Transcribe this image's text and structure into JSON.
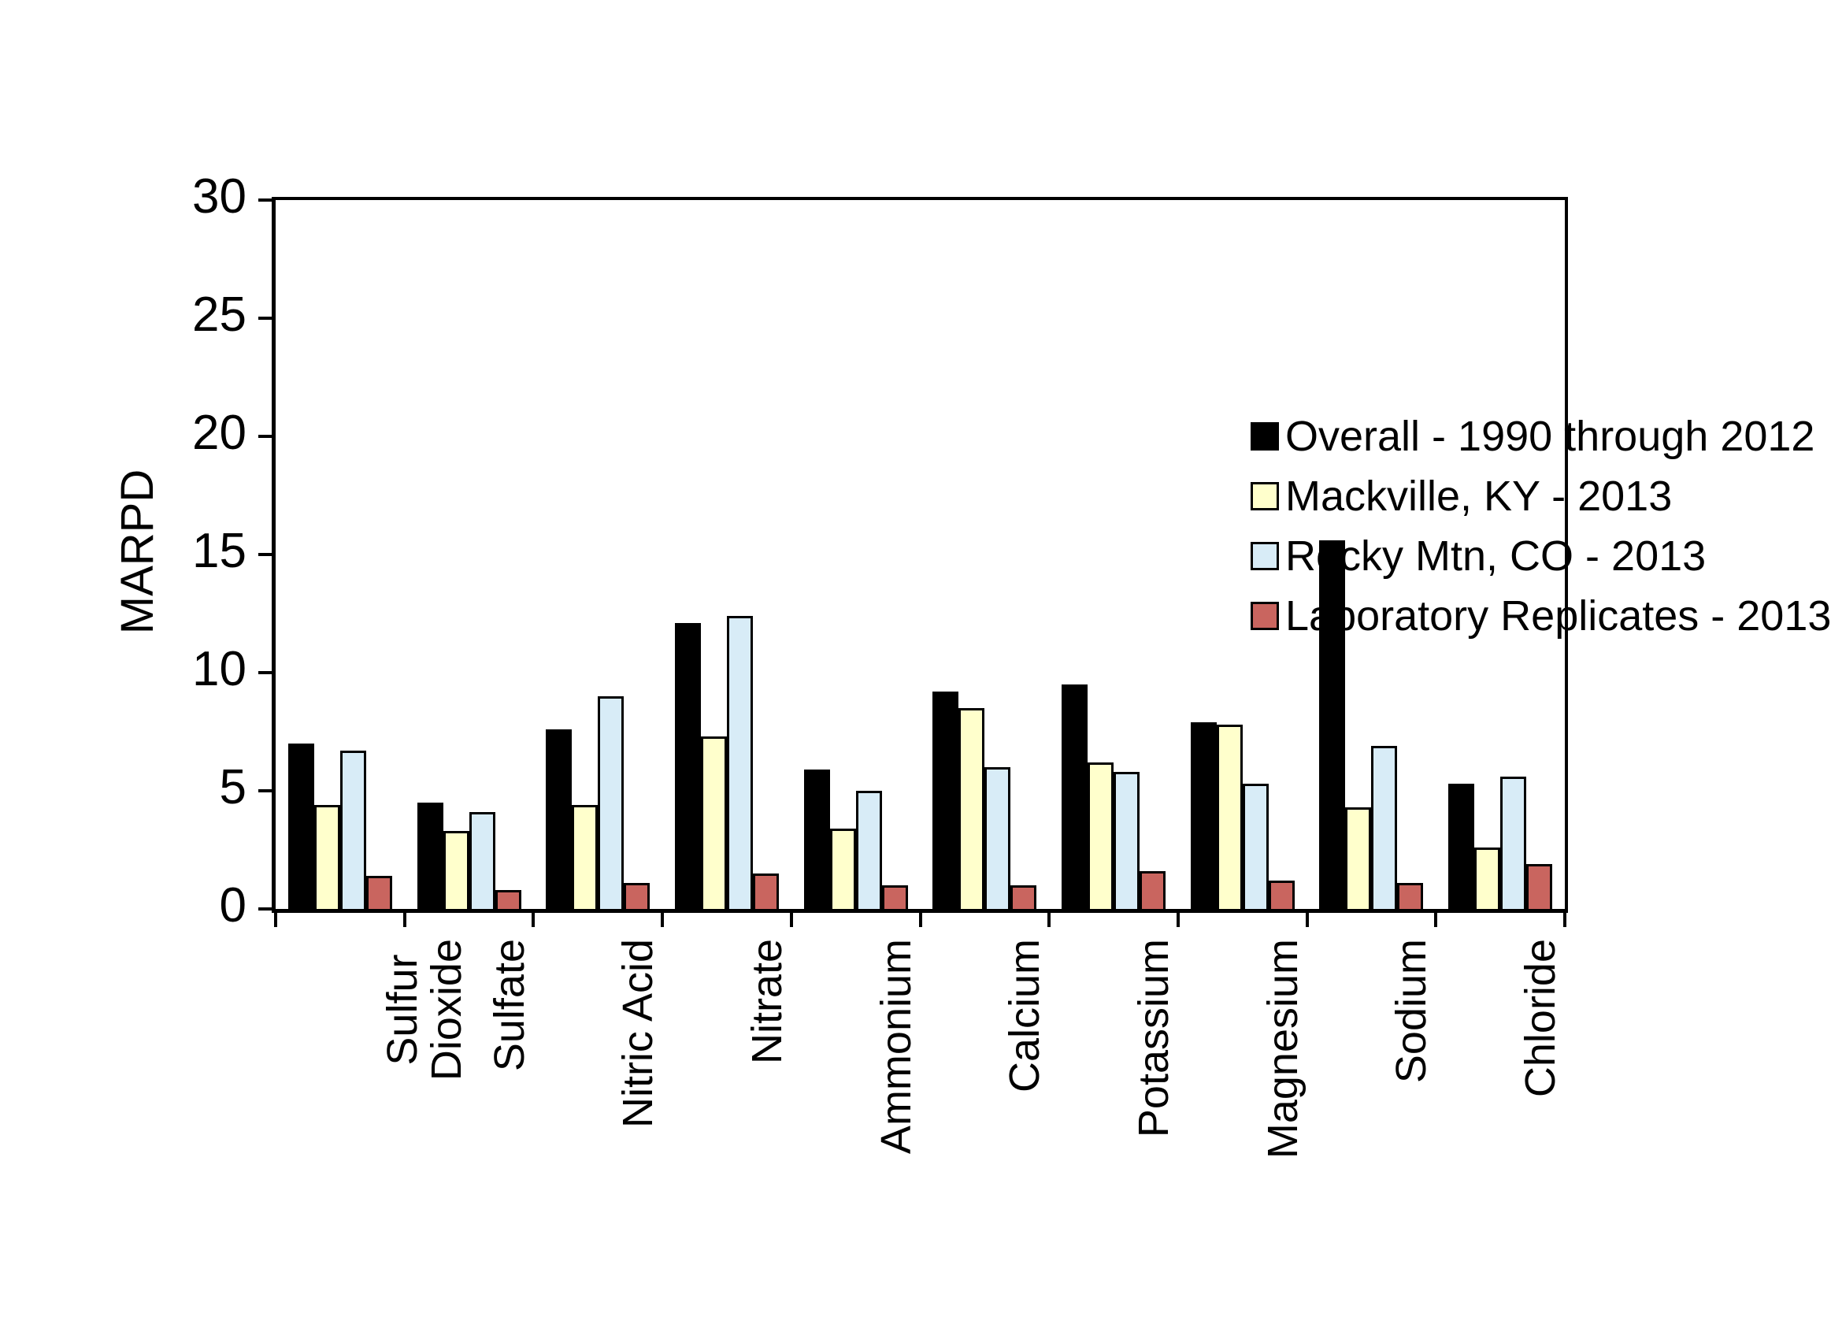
{
  "chart_data": {
    "type": "bar",
    "title": "",
    "xlabel": "",
    "ylabel": "MARPD",
    "ylim": [
      0,
      30
    ],
    "yticks": [
      0,
      5,
      10,
      15,
      20,
      25,
      30
    ],
    "grid": false,
    "legend_position": "top-right-inside",
    "categories": [
      "Sulfur Dioxide",
      "Sulfate",
      "Nitric Acid",
      "Nitrate",
      "Ammonium",
      "Calcium",
      "Potassium",
      "Magnesium",
      "Sodium",
      "Chloride"
    ],
    "category_display_lines": [
      [
        "Sulfur",
        "Dioxide"
      ],
      [
        "Sulfate"
      ],
      [
        "Nitric Acid"
      ],
      [
        "Nitrate"
      ],
      [
        "Ammonium"
      ],
      [
        "Calcium"
      ],
      [
        "Potassium"
      ],
      [
        "Magnesium"
      ],
      [
        "Sodium"
      ],
      [
        "Chloride"
      ]
    ],
    "series": [
      {
        "name": "Overall - 1990 through 2012",
        "color": "#000000",
        "values": [
          7.0,
          4.5,
          7.6,
          12.1,
          5.9,
          9.2,
          9.5,
          7.9,
          15.6,
          5.3
        ]
      },
      {
        "name": "Mackville, KY - 2013",
        "color": "#FFFFCC",
        "values": [
          4.4,
          3.3,
          4.4,
          7.3,
          3.4,
          8.5,
          6.2,
          7.8,
          4.3,
          2.6
        ]
      },
      {
        "name": "Rocky Mtn, CO - 2013",
        "color": "#D8ECF7",
        "values": [
          6.7,
          4.1,
          9.0,
          12.4,
          5.0,
          6.0,
          5.8,
          5.3,
          6.9,
          5.6
        ]
      },
      {
        "name": "Laboratory Replicates - 2013",
        "color": "#C9655F",
        "values": [
          1.4,
          0.8,
          1.1,
          1.5,
          1.0,
          1.0,
          1.6,
          1.2,
          1.1,
          1.9
        ]
      }
    ]
  },
  "colors": {
    "axis": "#000000",
    "background": "#FFFFFF",
    "bar_outline": "#000000"
  }
}
